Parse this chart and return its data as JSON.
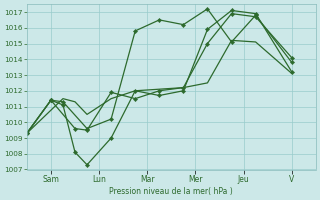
{
  "background_color": "#cce8e8",
  "grid_color": "#99cccc",
  "line_color": "#2d6a2d",
  "marker_color": "#2d6a2d",
  "xlabel": "Pression niveau de la mer( hPa )",
  "ylim": [
    1007,
    1017.5
  ],
  "yticks": [
    1007,
    1008,
    1009,
    1010,
    1011,
    1012,
    1013,
    1014,
    1015,
    1016,
    1017
  ],
  "ytick_fontsize": 5.5,
  "xtick_positions": [
    1.0,
    3.0,
    5.0,
    7.0,
    9.0,
    11.0
  ],
  "xtick_labels": [
    "Sam",
    "Lun",
    "Mar",
    "Mer",
    "Jeu",
    "V"
  ],
  "xlim": [
    0,
    12
  ],
  "lines": [
    {
      "x": [
        0.0,
        1.5,
        2.0,
        2.5,
        3.5,
        4.5,
        5.5,
        6.5,
        7.5,
        8.5,
        9.5,
        11.0
      ],
      "y": [
        1009.3,
        1011.5,
        1011.3,
        1010.5,
        1011.5,
        1012.0,
        1012.1,
        1012.2,
        1012.5,
        1015.2,
        1015.1,
        1013.1
      ],
      "with_markers": false
    },
    {
      "x": [
        0.0,
        1.0,
        1.5,
        2.0,
        2.5,
        3.5,
        4.5,
        5.5,
        6.5,
        7.5,
        8.5,
        9.5,
        11.0
      ],
      "y": [
        1009.3,
        1011.4,
        1011.1,
        1008.1,
        1007.3,
        1009.0,
        1012.0,
        1011.7,
        1012.0,
        1015.9,
        1017.1,
        1016.9,
        1013.2
      ],
      "with_markers": true
    },
    {
      "x": [
        0.0,
        1.0,
        1.5,
        2.5,
        3.5,
        4.5,
        5.5,
        6.5,
        7.5,
        8.5,
        9.5,
        11.0
      ],
      "y": [
        1009.3,
        1011.4,
        1011.3,
        1009.6,
        1010.2,
        1015.8,
        1016.5,
        1016.2,
        1017.2,
        1015.1,
        1016.8,
        1013.8
      ],
      "with_markers": true
    },
    {
      "x": [
        0.0,
        1.0,
        2.0,
        2.5,
        3.5,
        4.5,
        5.5,
        6.5,
        7.5,
        8.5,
        9.5,
        11.0
      ],
      "y": [
        1009.3,
        1011.4,
        1009.6,
        1009.5,
        1011.9,
        1011.5,
        1012.0,
        1012.2,
        1015.0,
        1016.9,
        1016.7,
        1014.1
      ],
      "with_markers": true
    }
  ]
}
